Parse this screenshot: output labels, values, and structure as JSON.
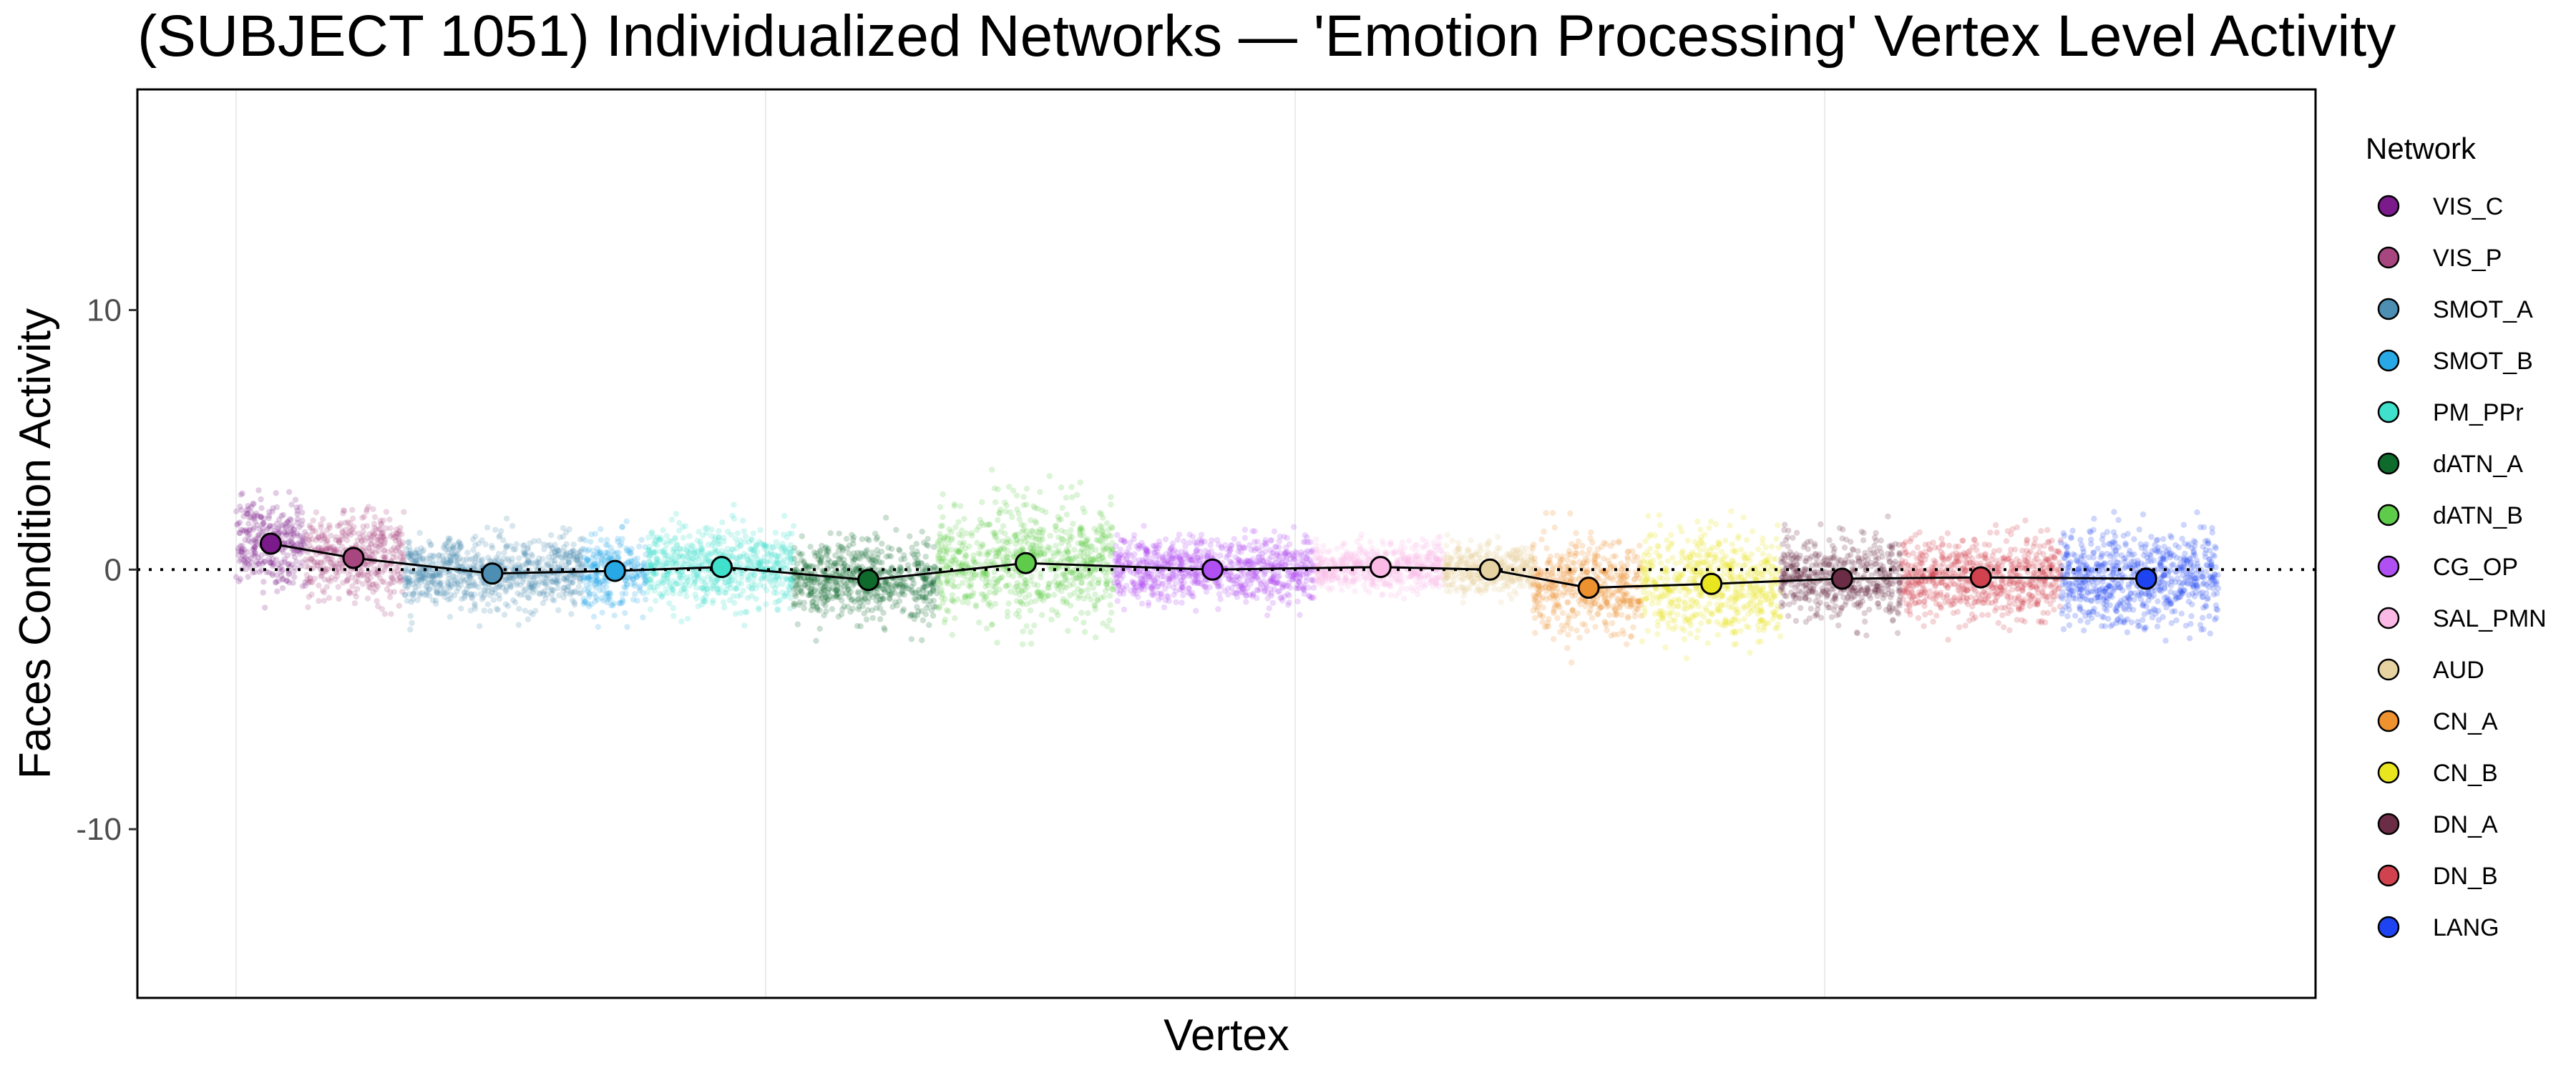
{
  "chart_data": {
    "type": "scatter",
    "title": "(SUBJECT 1051) Individualized Networks — 'Emotion Processing' Vertex Level Activity",
    "xlabel": "Vertex",
    "ylabel": "Faces Condition Activity",
    "ylim": [
      -16.5,
      18.5
    ],
    "yticks": [
      10,
      0,
      -10
    ],
    "ytick_labels": [
      "10",
      "0",
      "-10"
    ],
    "xlim": [
      0,
      6170
    ],
    "x_gridlines": [
      0,
      2000,
      4000,
      6000
    ],
    "reference_line_y": 0,
    "grid": "vertical major lines only",
    "legend_title": "Network",
    "legend_position": "right",
    "series": [
      {
        "name": "VIS_C",
        "color": "#7B1A8A",
        "x_start": 0,
        "x_end": 260,
        "mean": 1.0,
        "spread": 1.1,
        "mean_x": 130
      },
      {
        "name": "VIS_P",
        "color": "#A8467F",
        "x_start": 260,
        "x_end": 630,
        "mean": 0.45,
        "spread": 1.1,
        "mean_x": 440
      },
      {
        "name": "SMOT_A",
        "color": "#4C8FB2",
        "x_start": 630,
        "x_end": 1300,
        "mean": -0.15,
        "spread": 0.9,
        "mean_x": 960
      },
      {
        "name": "SMOT_B",
        "color": "#28A9E6",
        "x_start": 1300,
        "x_end": 1540,
        "mean": -0.05,
        "spread": 0.9,
        "mean_x": 1420
      },
      {
        "name": "PM_PPr",
        "color": "#3FE0CC",
        "x_start": 1540,
        "x_end": 2090,
        "mean": 0.1,
        "spread": 1.0,
        "mean_x": 1820
      },
      {
        "name": "dATN_A",
        "color": "#0E6B2C",
        "x_start": 2090,
        "x_end": 2630,
        "mean": -0.4,
        "spread": 1.0,
        "mean_x": 2370
      },
      {
        "name": "dATN_B",
        "color": "#5FCB4B",
        "x_start": 2630,
        "x_end": 3290,
        "mean": 0.25,
        "spread": 1.5,
        "mean_x": 2960
      },
      {
        "name": "CG_OP",
        "color": "#B04FF2",
        "x_start": 3290,
        "x_end": 4040,
        "mean": 0.0,
        "spread": 0.8,
        "mean_x": 3660
      },
      {
        "name": "SAL_PMN",
        "color": "#FBB9E6",
        "x_start": 4040,
        "x_end": 4530,
        "mean": 0.1,
        "spread": 0.6,
        "mean_x": 4290
      },
      {
        "name": "AUD",
        "color": "#E7D3A1",
        "x_start": 4530,
        "x_end": 4860,
        "mean": 0.0,
        "spread": 0.6,
        "mean_x": 4700
      },
      {
        "name": "CN_A",
        "color": "#EE9230",
        "x_start": 4860,
        "x_end": 5270,
        "mean": -0.7,
        "spread": 1.2,
        "mean_x": 5070
      },
      {
        "name": "CN_B",
        "color": "#E9E51F",
        "x_start": 5270,
        "x_end": 5790,
        "mean": -0.55,
        "spread": 1.3,
        "mean_x": 5530
      },
      {
        "name": "DN_A",
        "color": "#6B2C45",
        "x_start": 5790,
        "x_end": 6240,
        "mean": -0.35,
        "spread": 1.0,
        "mean_x": 6020
      },
      {
        "name": "DN_B",
        "color": "#D0424E",
        "x_start": 6240,
        "x_end": 6840,
        "mean": -0.3,
        "spread": 1.0,
        "mean_x": 6540
      },
      {
        "name": "LANG",
        "color": "#1E44F2",
        "x_start": 6840,
        "x_end": 7430,
        "mean": -0.35,
        "spread": 1.2,
        "mean_x": 7160
      }
    ]
  }
}
